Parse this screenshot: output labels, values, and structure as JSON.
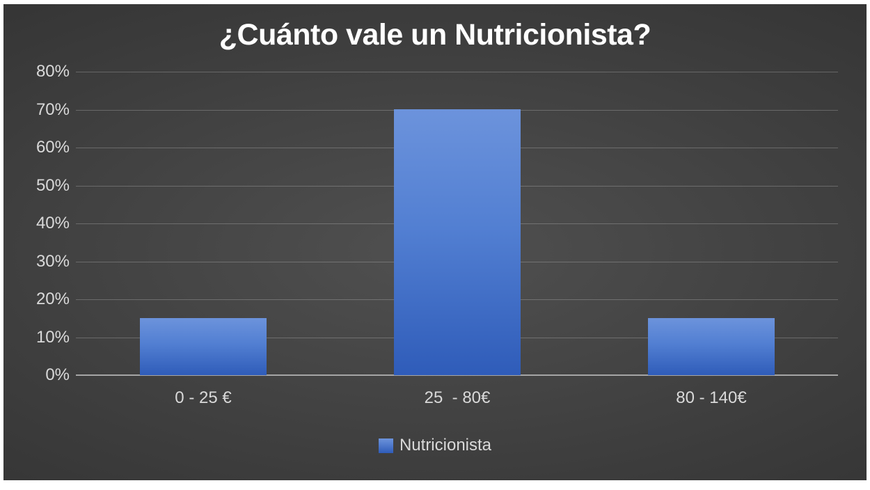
{
  "chart_data": {
    "type": "bar",
    "title": "¿Cuánto vale un Nutricionista?",
    "categories": [
      "0 - 25 €",
      "25  - 80€",
      "80 - 140€"
    ],
    "series": [
      {
        "name": "Nutricionista",
        "values": [
          15,
          70,
          15
        ]
      }
    ],
    "xlabel": "",
    "ylabel": "",
    "ylim": [
      0,
      80
    ],
    "ytick_step": 10,
    "ytick_labels": [
      "0%",
      "10%",
      "20%",
      "30%",
      "40%",
      "50%",
      "60%",
      "70%",
      "80%"
    ],
    "grid": true,
    "legend_position": "bottom-center",
    "colors": {
      "title_text": "#ffffff",
      "axis_text": "#d9d9d9",
      "gridline": "rgba(255,255,255,0.22)",
      "axis_line": "#a6a6a6",
      "bar_gradient_top": "#6c93dc",
      "bar_gradient_mid": "#527fd2",
      "bar_gradient_bottom": "#2f5cb9",
      "background_center": "#505050",
      "background_edge": "#252525",
      "page_margin": "#ffffff"
    }
  }
}
